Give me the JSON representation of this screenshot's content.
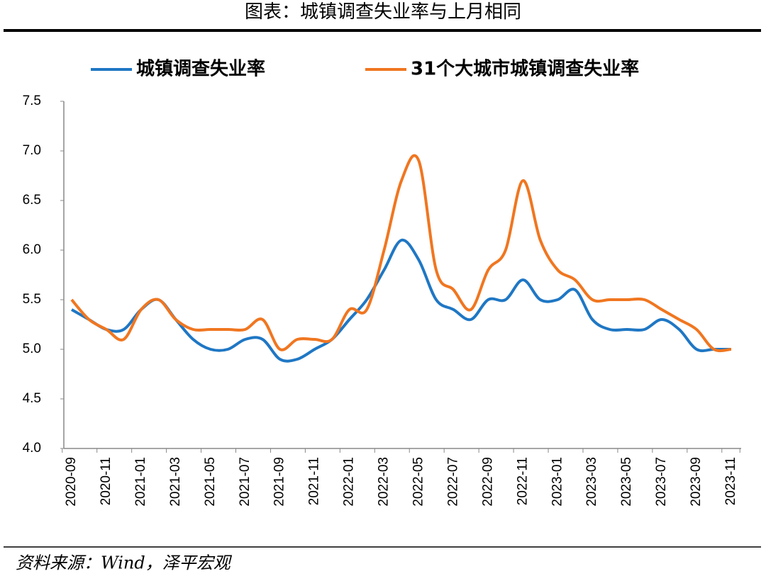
{
  "chart_data": {
    "type": "line",
    "title": "图表：城镇调查失业率与上月相同",
    "source": "资料来源：Wind，泽平宏观",
    "categories": [
      "2020-09",
      null,
      "2020-11",
      null,
      "2021-01",
      null,
      "2021-03",
      null,
      "2021-05",
      null,
      "2021-07",
      null,
      "2021-09",
      null,
      "2021-11",
      null,
      "2022-01",
      null,
      "2022-03",
      null,
      "2022-05",
      null,
      "2022-07",
      null,
      "2022-09",
      null,
      "2022-11",
      null,
      "2023-01",
      null,
      "2023-03",
      null,
      "2023-05",
      null,
      "2023-07",
      null,
      "2023-09",
      null,
      "2023-11"
    ],
    "series": [
      {
        "name": "城镇调查失业率",
        "color": "#1f77c4",
        "values": [
          5.4,
          5.3,
          5.2,
          5.2,
          5.4,
          5.5,
          5.3,
          5.1,
          5.0,
          5.0,
          5.1,
          5.1,
          4.9,
          4.9,
          5.0,
          5.1,
          5.3,
          5.5,
          5.8,
          6.1,
          5.9,
          5.5,
          5.4,
          5.3,
          5.5,
          5.5,
          5.7,
          5.5,
          5.5,
          5.6,
          5.3,
          5.2,
          5.2,
          5.2,
          5.3,
          5.2,
          5.0,
          5.0,
          5.0
        ]
      },
      {
        "name": "31个大城市城镇调查失业率",
        "color": "#f07620",
        "values": [
          5.5,
          5.3,
          5.2,
          5.1,
          5.4,
          5.5,
          5.3,
          5.2,
          5.2,
          5.2,
          5.2,
          5.3,
          5.0,
          5.1,
          5.1,
          5.1,
          5.4,
          5.4,
          6.0,
          6.7,
          6.9,
          5.8,
          5.6,
          5.4,
          5.8,
          6.0,
          6.7,
          6.1,
          5.8,
          5.7,
          5.5,
          5.5,
          5.5,
          5.5,
          5.4,
          5.3,
          5.2,
          5.0,
          5.0
        ]
      }
    ],
    "ylim": [
      4,
      7.5
    ],
    "yticks": [
      {
        "value": 4,
        "label": "4.0"
      },
      4.5,
      {
        "value": 5,
        "label": "5.0"
      },
      5.5,
      {
        "value": 6,
        "label": "6.0"
      },
      6.5,
      {
        "value": 7,
        "label": "7.0"
      },
      7.5
    ]
  }
}
